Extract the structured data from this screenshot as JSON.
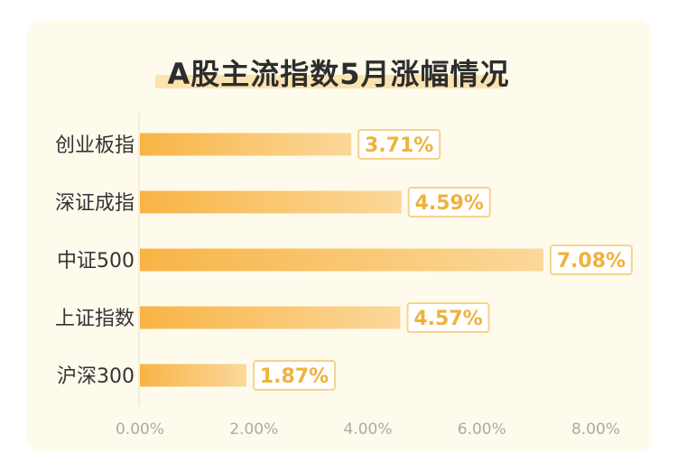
{
  "chart_data": {
    "type": "bar",
    "orientation": "horizontal",
    "title": "A股主流指数5月涨幅情况",
    "categories": [
      "创业板指",
      "深证成指",
      "中证500",
      "上证指数",
      "沪深300"
    ],
    "values": [
      3.71,
      4.59,
      7.08,
      4.57,
      1.87
    ],
    "value_labels": [
      "3.71%",
      "4.59%",
      "7.08%",
      "4.57%",
      "1.87%"
    ],
    "xlim": [
      0,
      8
    ],
    "x_ticks": [
      "0.00%",
      "2.00%",
      "4.00%",
      "6.00%",
      "8.00%"
    ],
    "xlabel": "",
    "ylabel": "",
    "grid": false,
    "legend": "none",
    "colors": {
      "bar_start": "#f8b445",
      "bar_end": "#fbd89a",
      "value_text": "#efb23c",
      "value_box_border": "#f6d28e",
      "card_bg": "#fefbec",
      "title_highlight": "#fbe3b0"
    }
  }
}
